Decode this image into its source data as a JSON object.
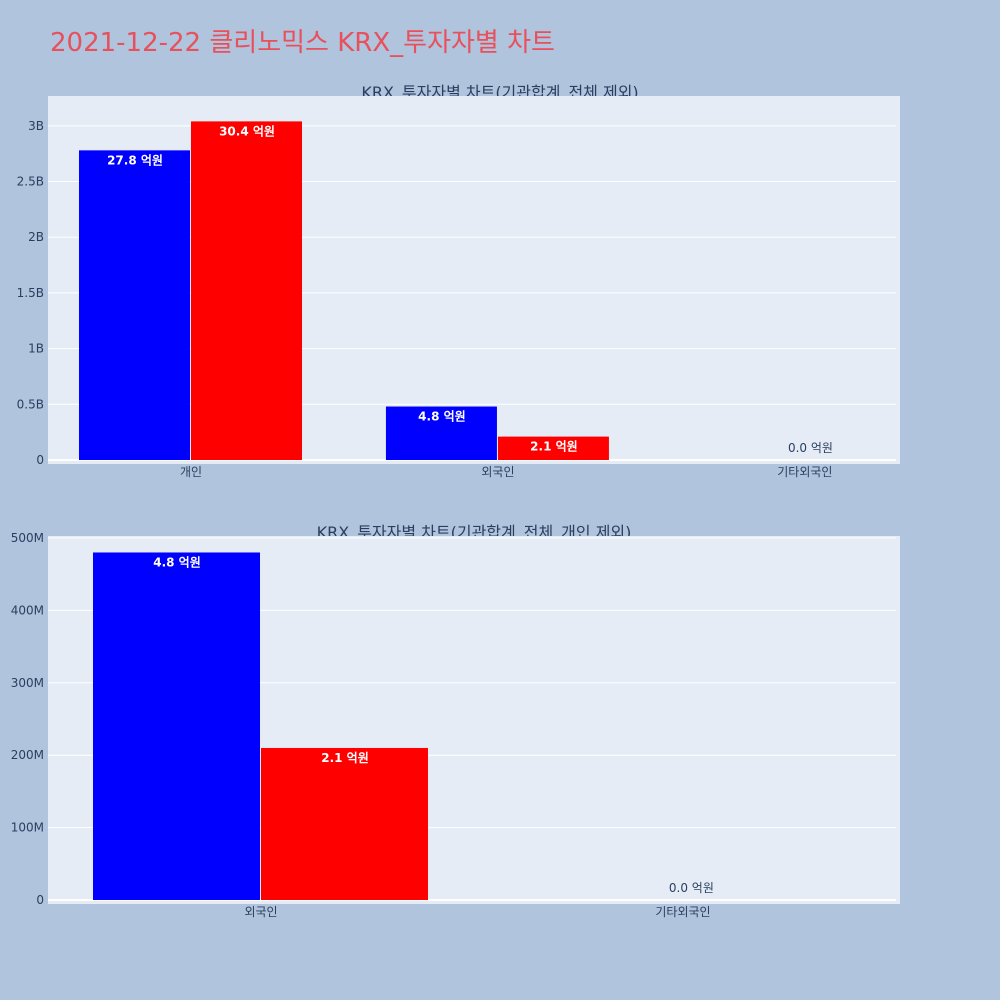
{
  "page_title": "2021-12-22 클리노믹스 KRX_투자자별 차트",
  "chart_data": [
    {
      "type": "bar",
      "title": "KRX_투자자별 차트(기관합계_전체 제외)",
      "categories": [
        "개인",
        "외국인",
        "기타외국인"
      ],
      "series": [
        {
          "color": "#0000ff",
          "values": [
            2780000000,
            480000000,
            0
          ],
          "labels": [
            "27.8 억원",
            "4.8 억원",
            "0.0 억원"
          ]
        },
        {
          "color": "#ff0000",
          "values": [
            3040000000,
            210000000,
            0
          ],
          "labels": [
            "30.4 억원",
            "2.1 억원",
            ""
          ]
        }
      ],
      "ylim": [
        0,
        3250000000
      ],
      "yticks": [
        0,
        500000000,
        1000000000,
        1500000000,
        2000000000,
        2500000000,
        3000000000
      ],
      "ytick_labels": [
        "0",
        "0.5B",
        "1B",
        "1.5B",
        "2B",
        "2.5B",
        "3B"
      ],
      "grid": true,
      "plot_bg": "#e5ecf6"
    },
    {
      "type": "bar",
      "title": "KRX_투자자별 차트(기관합계_전체_개인 제외)",
      "categories": [
        "외국인",
        "기타외국인"
      ],
      "series": [
        {
          "color": "#0000ff",
          "values": [
            480000000,
            0
          ],
          "labels": [
            "4.8 억원",
            "0.0 억원"
          ]
        },
        {
          "color": "#ff0000",
          "values": [
            210000000,
            0
          ],
          "labels": [
            "2.1 억원",
            ""
          ]
        }
      ],
      "ylim": [
        0,
        500000000
      ],
      "yticks": [
        0,
        100000000,
        200000000,
        300000000,
        400000000,
        500000000
      ],
      "ytick_labels": [
        "0",
        "100M",
        "200M",
        "300M",
        "400M",
        "500M"
      ],
      "grid": true,
      "plot_bg": "#e5ecf6"
    }
  ]
}
